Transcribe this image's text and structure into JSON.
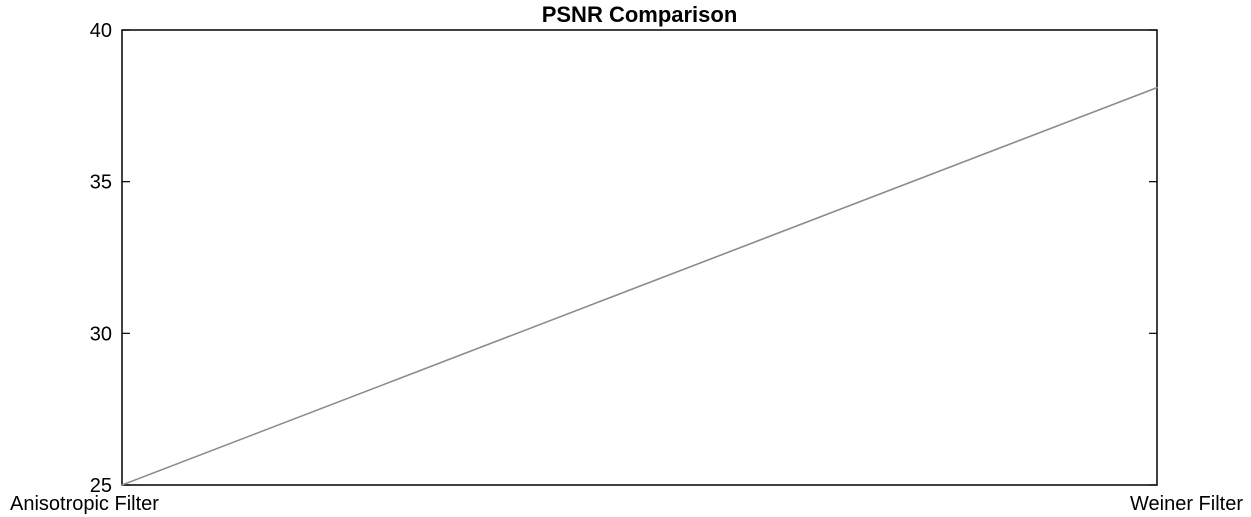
{
  "chart_data": {
    "type": "line",
    "title": "PSNR Comparison",
    "xlabel": "",
    "ylabel": "",
    "categories": [
      "Anisotropic Filter",
      "Weiner Filter"
    ],
    "series": [
      {
        "values": [
          25.0,
          38.1
        ],
        "color": "#8c8c8c"
      }
    ],
    "ylim": [
      25,
      40
    ],
    "yticks": [
      25,
      30,
      35,
      40
    ],
    "ytick_labels": [
      "25",
      "30",
      "35",
      "40"
    ],
    "grid": false,
    "legend": "none"
  }
}
